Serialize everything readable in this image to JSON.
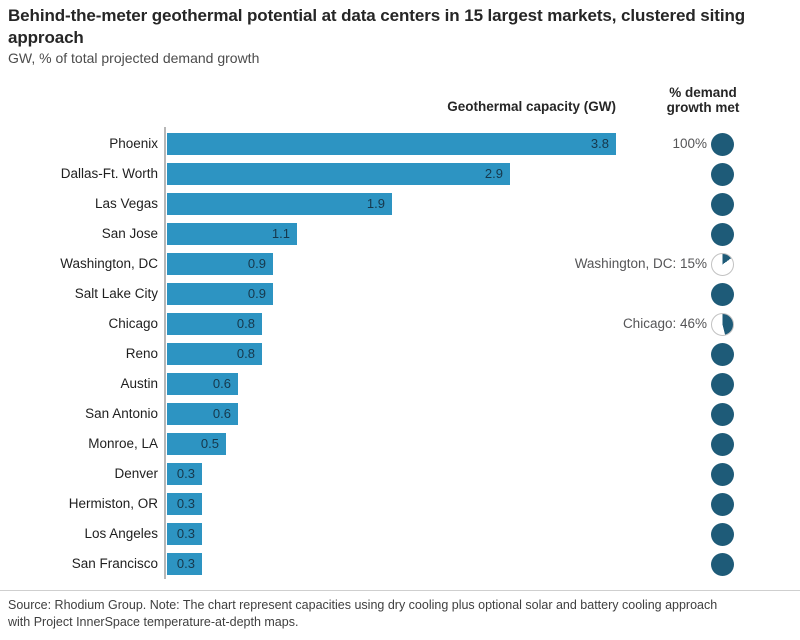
{
  "title": "Behind-the-meter geothermal potential at data centers in 15 largest markets, clustered siting approach",
  "subtitle": "GW, % of total projected demand growth",
  "column_headers": {
    "bars": "Geothermal capacity (GW)",
    "pies_line1": "% demand",
    "pies_line2": "growth met"
  },
  "colors": {
    "bar": "#2d94c2",
    "pie": "#1e5b78",
    "pie_empty": "#ffffff",
    "axis_line": "#b7b7b7",
    "value_label": "#16384c",
    "annotation_label": "#555557"
  },
  "chart_data": {
    "type": "bar",
    "orientation": "horizontal",
    "title": "Behind-the-meter geothermal potential at data centers in 15 largest markets, clustered siting approach",
    "subtitle": "GW, % of total projected demand growth",
    "categories": [
      "Phoenix",
      "Dallas-Ft. Worth",
      "Las Vegas",
      "San Jose",
      "Washington, DC",
      "Salt Lake City",
      "Chicago",
      "Reno",
      "Austin",
      "San Antonio",
      "Monroe, LA",
      "Denver",
      "Hermiston, OR",
      "Los Angeles",
      "San Francisco"
    ],
    "series": [
      {
        "name": "Geothermal capacity (GW)",
        "unit": "GW",
        "values": [
          3.8,
          2.9,
          1.9,
          1.1,
          0.9,
          0.9,
          0.8,
          0.8,
          0.6,
          0.6,
          0.5,
          0.3,
          0.3,
          0.3,
          0.3
        ]
      },
      {
        "name": "% demand growth met",
        "unit": "%",
        "values": [
          100,
          100,
          100,
          100,
          15,
          100,
          46,
          100,
          100,
          100,
          100,
          100,
          100,
          100,
          100
        ]
      }
    ],
    "bar_value_labels": [
      "3.8",
      "2.9",
      "1.9",
      "1.1",
      "0.9",
      "0.9",
      "0.8",
      "0.8",
      "0.6",
      "0.6",
      "0.5",
      "0.3",
      "0.3",
      "0.3",
      "0.3"
    ],
    "pie_row_labels": [
      "100%",
      "",
      "",
      "",
      "Washington, DC: 15%",
      "",
      "Chicago: 46%",
      "",
      "",
      "",
      "",
      "",
      "",
      "",
      ""
    ],
    "xlim": [
      0,
      4
    ],
    "grid": false,
    "legend_position": "column-headers"
  },
  "footer": {
    "lines": [
      "Source: Rhodium Group. Note: The chart represent capacities using dry cooling plus optional solar and battery cooling approach",
      "with Project InnerSpace temperature-at-depth maps."
    ]
  }
}
